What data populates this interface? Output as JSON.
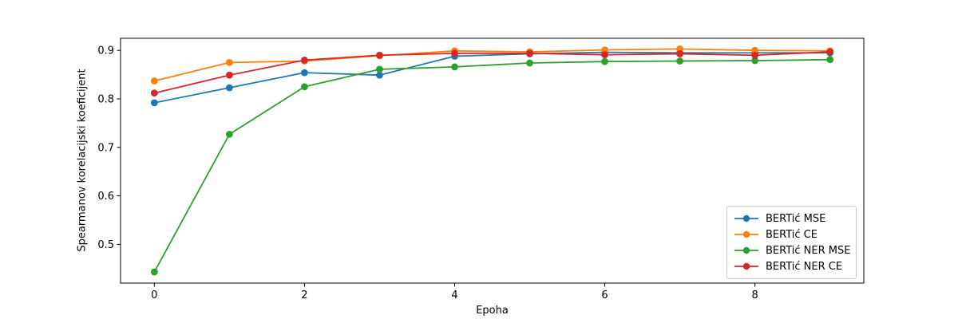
{
  "chart_data": {
    "type": "line",
    "title": "",
    "xlabel": "Epoha",
    "ylabel": "Spearmanov korelacijski koeficijent",
    "x": [
      0,
      1,
      2,
      3,
      4,
      5,
      6,
      7,
      8,
      9
    ],
    "xticks": [
      0,
      2,
      4,
      6,
      8
    ],
    "yticks": [
      0.5,
      0.6,
      0.7,
      0.8,
      0.9
    ],
    "xlim": [
      -0.45,
      9.45
    ],
    "ylim": [
      0.42,
      0.925
    ],
    "grid": false,
    "legend_position": "lower right",
    "marker": "circle",
    "axis_color": "#000000",
    "series": [
      {
        "name": "BERTić MSE",
        "color": "#1f77b4",
        "values": [
          0.792,
          0.823,
          0.854,
          0.849,
          0.888,
          0.893,
          0.896,
          0.895,
          0.895,
          0.895
        ]
      },
      {
        "name": "BERTić CE",
        "color": "#ff7f0e",
        "values": [
          0.837,
          0.875,
          0.878,
          0.889,
          0.899,
          0.897,
          0.901,
          0.903,
          0.9,
          0.899
        ]
      },
      {
        "name": "BERTić NER MSE",
        "color": "#2ca02c",
        "values": [
          0.443,
          0.727,
          0.825,
          0.861,
          0.866,
          0.874,
          0.877,
          0.878,
          0.879,
          0.881
        ]
      },
      {
        "name": "BERTić NER CE",
        "color": "#d62728",
        "values": [
          0.812,
          0.849,
          0.88,
          0.89,
          0.894,
          0.894,
          0.891,
          0.893,
          0.89,
          0.897
        ]
      }
    ]
  }
}
